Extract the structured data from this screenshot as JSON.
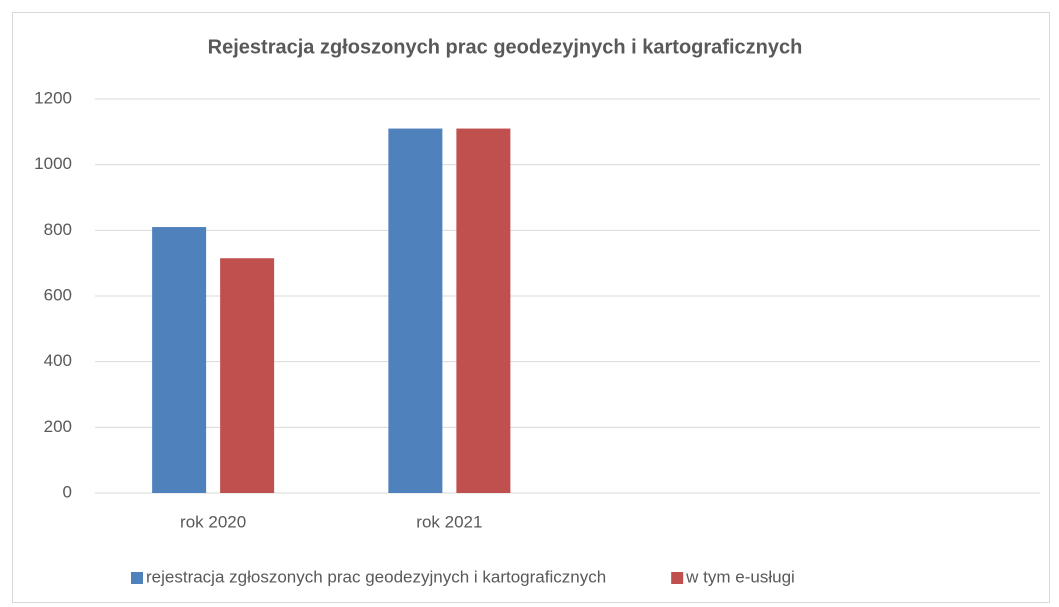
{
  "chart_data": {
    "type": "bar",
    "title": "Rejestracja zgłoszonych prac geodezyjnych i kartograficznych",
    "categories": [
      "rok 2020",
      "rok 2021",
      null,
      null
    ],
    "series": [
      {
        "name": "rejestracja zgłoszonych prac geodezyjnych i kartograficznych",
        "color": "#4f81bd",
        "values": [
          810,
          1110,
          null,
          null
        ]
      },
      {
        "name": "w tym e-usługi",
        "color": "#c0504d",
        "values": [
          715,
          1110,
          null,
          null
        ]
      }
    ],
    "ylim": [
      0,
      1200
    ],
    "yticks": [
      0,
      200,
      400,
      600,
      800,
      1000,
      1200
    ],
    "grid": true,
    "legend": "bottom"
  }
}
